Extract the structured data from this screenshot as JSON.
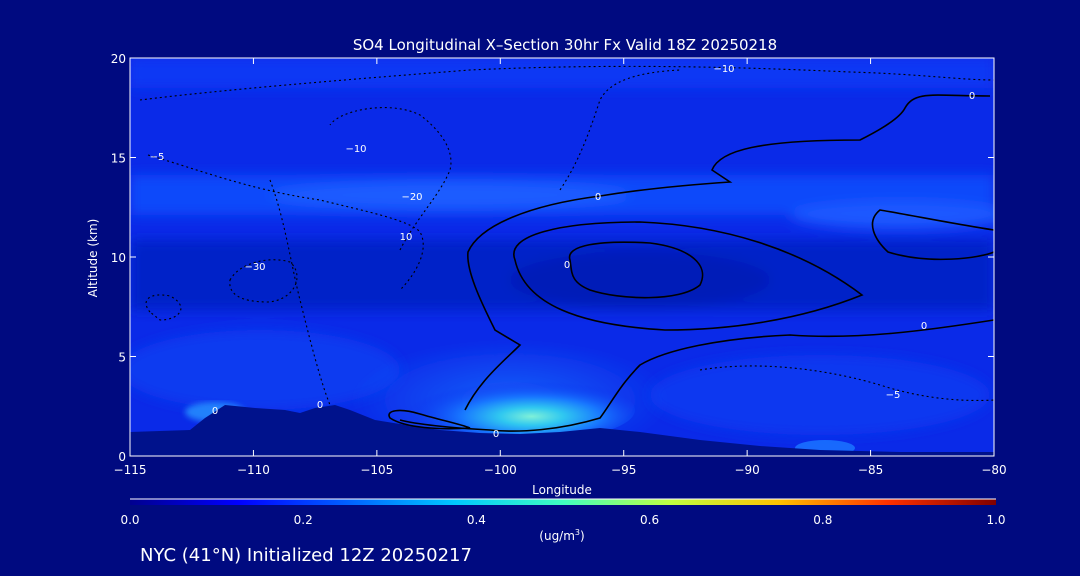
{
  "chart_data": {
    "type": "heatmap",
    "title": "SO4 Longitudinal X–Section 30hr  Fx Valid 18Z 20250218",
    "xlabel": "Longitude",
    "ylabel": "Altitude (km)",
    "xlim": [
      -115,
      -80
    ],
    "ylim": [
      0,
      20
    ],
    "x_ticks": [
      -115,
      -110,
      -105,
      -100,
      -95,
      -90,
      -85,
      -80
    ],
    "x_tick_labels": [
      "−115",
      "−110",
      "−105",
      "−100",
      "−95",
      "−90",
      "−85",
      "−80"
    ],
    "y_ticks": [
      0,
      5,
      10,
      15,
      20
    ],
    "y_tick_labels": [
      "0",
      "5",
      "10",
      "15",
      "20"
    ],
    "colorbar": {
      "min": 0.0,
      "max": 1.0,
      "ticks": [
        0.0,
        0.2,
        0.4,
        0.6,
        0.8,
        1.0
      ],
      "tick_labels": [
        "0.0",
        "0.2",
        "0.4",
        "0.6",
        "0.8",
        "1.0"
      ],
      "unit_prefix": "(ug/m",
      "unit_sup": "3",
      "unit_suffix": ")"
    },
    "contour_labels": [
      "−10",
      "−5",
      "−10",
      "−20",
      "0",
      "0",
      "0",
      "0",
      "−5",
      "0",
      "−30",
      "10",
      "0",
      "0"
    ],
    "max_concentration_region": {
      "longitude": [
        -103,
        -95
      ],
      "altitude_km": [
        1,
        3
      ],
      "approx_value": 0.35
    },
    "grid": false,
    "legend": "colorbar-bottom"
  },
  "footer": {
    "caption": "NYC (41°N) Initialized 12Z 20250217"
  },
  "colors": {
    "background": "#000a80",
    "foreground": "#ffffff",
    "colormap": [
      "#00008f",
      "#0000ff",
      "#0080ff",
      "#00ffff",
      "#80ff80",
      "#ffff00",
      "#ff8000",
      "#ff0000",
      "#800000"
    ]
  }
}
